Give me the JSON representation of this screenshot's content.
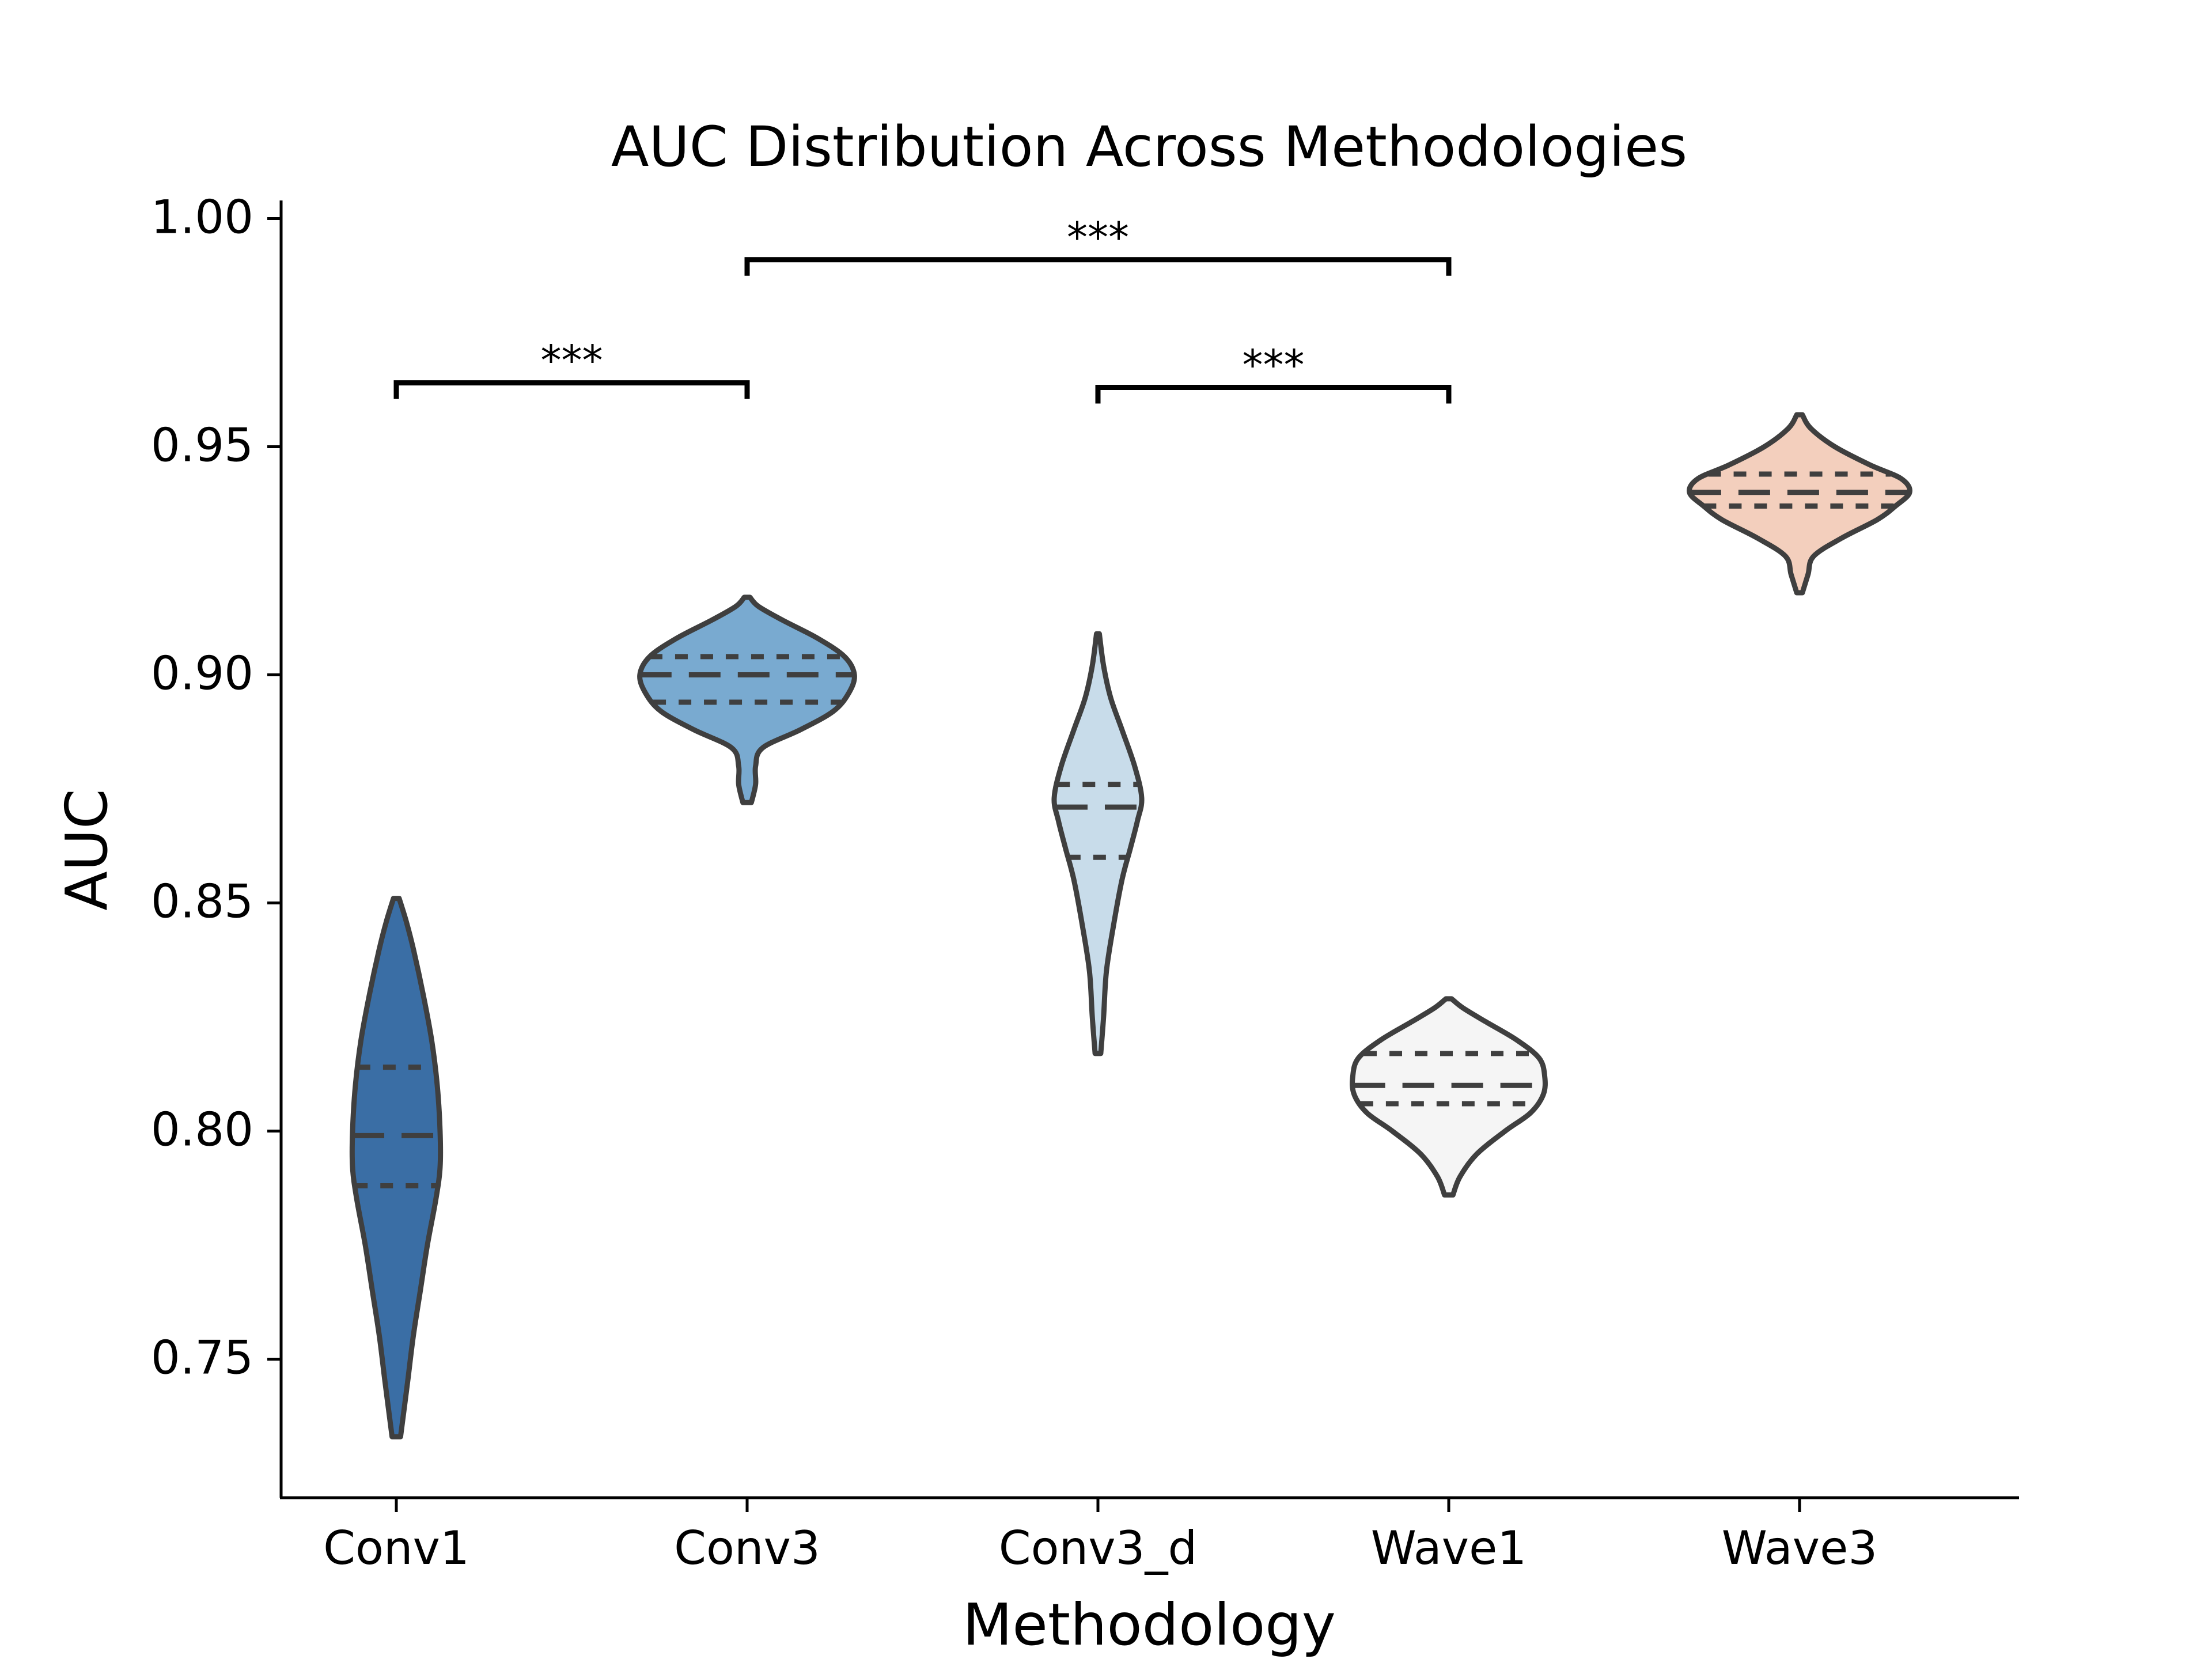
{
  "chart_data": {
    "type": "violin",
    "title": "AUC Distribution Across Methodologies",
    "xlabel": "Methodology",
    "ylabel": "AUC",
    "ylim": [
      0.72,
      1.005
    ],
    "yticks": [
      "0.75",
      "0.80",
      "0.85",
      "0.90",
      "0.95",
      "1.00"
    ],
    "grid": false,
    "categories": [
      "Conv1",
      "Conv3",
      "Conv3_d",
      "Wave1",
      "Wave3"
    ],
    "colors": [
      "#3a6ea5",
      "#79aad0",
      "#c8dcea",
      "#f5f5f5",
      "#f3cfbd"
    ],
    "outline_color": "#3f3f3f",
    "violins": [
      {
        "category": "Conv1",
        "min": 0.733,
        "max": 0.851,
        "q1": 0.788,
        "median": 0.799,
        "q3": 0.814,
        "profile": [
          [
            0.733,
            0.003
          ],
          [
            0.745,
            0.008
          ],
          [
            0.755,
            0.012
          ],
          [
            0.765,
            0.017
          ],
          [
            0.775,
            0.022
          ],
          [
            0.785,
            0.028
          ],
          [
            0.792,
            0.031
          ],
          [
            0.8,
            0.031
          ],
          [
            0.81,
            0.029
          ],
          [
            0.82,
            0.025
          ],
          [
            0.83,
            0.019
          ],
          [
            0.84,
            0.012
          ],
          [
            0.846,
            0.007
          ],
          [
            0.851,
            0.002
          ]
        ]
      },
      {
        "category": "Conv3",
        "min": 0.872,
        "max": 0.917,
        "q1": 0.894,
        "median": 0.9,
        "q3": 0.904,
        "profile": [
          [
            0.872,
            0.003
          ],
          [
            0.876,
            0.006
          ],
          [
            0.88,
            0.006
          ],
          [
            0.884,
            0.011
          ],
          [
            0.888,
            0.038
          ],
          [
            0.892,
            0.061
          ],
          [
            0.896,
            0.072
          ],
          [
            0.9,
            0.076
          ],
          [
            0.904,
            0.069
          ],
          [
            0.908,
            0.05
          ],
          [
            0.912,
            0.025
          ],
          [
            0.915,
            0.008
          ],
          [
            0.917,
            0.002
          ]
        ]
      },
      {
        "category": "Conv3_d",
        "min": 0.817,
        "max": 0.909,
        "q1": 0.86,
        "median": 0.871,
        "q3": 0.876,
        "profile": [
          [
            0.817,
            0.002
          ],
          [
            0.825,
            0.004
          ],
          [
            0.835,
            0.006
          ],
          [
            0.845,
            0.011
          ],
          [
            0.855,
            0.017
          ],
          [
            0.862,
            0.023
          ],
          [
            0.868,
            0.028
          ],
          [
            0.873,
            0.031
          ],
          [
            0.88,
            0.026
          ],
          [
            0.888,
            0.017
          ],
          [
            0.895,
            0.009
          ],
          [
            0.902,
            0.004
          ],
          [
            0.909,
            0.001
          ]
        ]
      },
      {
        "category": "Wave1",
        "min": 0.786,
        "max": 0.829,
        "q1": 0.806,
        "median": 0.81,
        "q3": 0.817,
        "profile": [
          [
            0.786,
            0.003
          ],
          [
            0.79,
            0.008
          ],
          [
            0.795,
            0.02
          ],
          [
            0.8,
            0.04
          ],
          [
            0.804,
            0.058
          ],
          [
            0.808,
            0.067
          ],
          [
            0.812,
            0.068
          ],
          [
            0.816,
            0.064
          ],
          [
            0.82,
            0.048
          ],
          [
            0.824,
            0.026
          ],
          [
            0.827,
            0.01
          ],
          [
            0.829,
            0.002
          ]
        ]
      },
      {
        "category": "Wave3",
        "min": 0.918,
        "max": 0.957,
        "q1": 0.937,
        "median": 0.94,
        "q3": 0.944,
        "profile": [
          [
            0.918,
            0.002
          ],
          [
            0.922,
            0.006
          ],
          [
            0.926,
            0.01
          ],
          [
            0.93,
            0.03
          ],
          [
            0.934,
            0.055
          ],
          [
            0.937,
            0.068
          ],
          [
            0.94,
            0.078
          ],
          [
            0.943,
            0.072
          ],
          [
            0.946,
            0.05
          ],
          [
            0.95,
            0.025
          ],
          [
            0.954,
            0.008
          ],
          [
            0.957,
            0.002
          ]
        ]
      }
    ],
    "significance": [
      {
        "from": "Conv1",
        "to": "Conv3",
        "y": 0.964,
        "label": "***"
      },
      {
        "from": "Conv3",
        "to": "Wave1",
        "y": 0.991,
        "label": "***"
      },
      {
        "from": "Conv3_d",
        "to": "Wave1",
        "y": 0.963,
        "label": "***"
      }
    ]
  }
}
